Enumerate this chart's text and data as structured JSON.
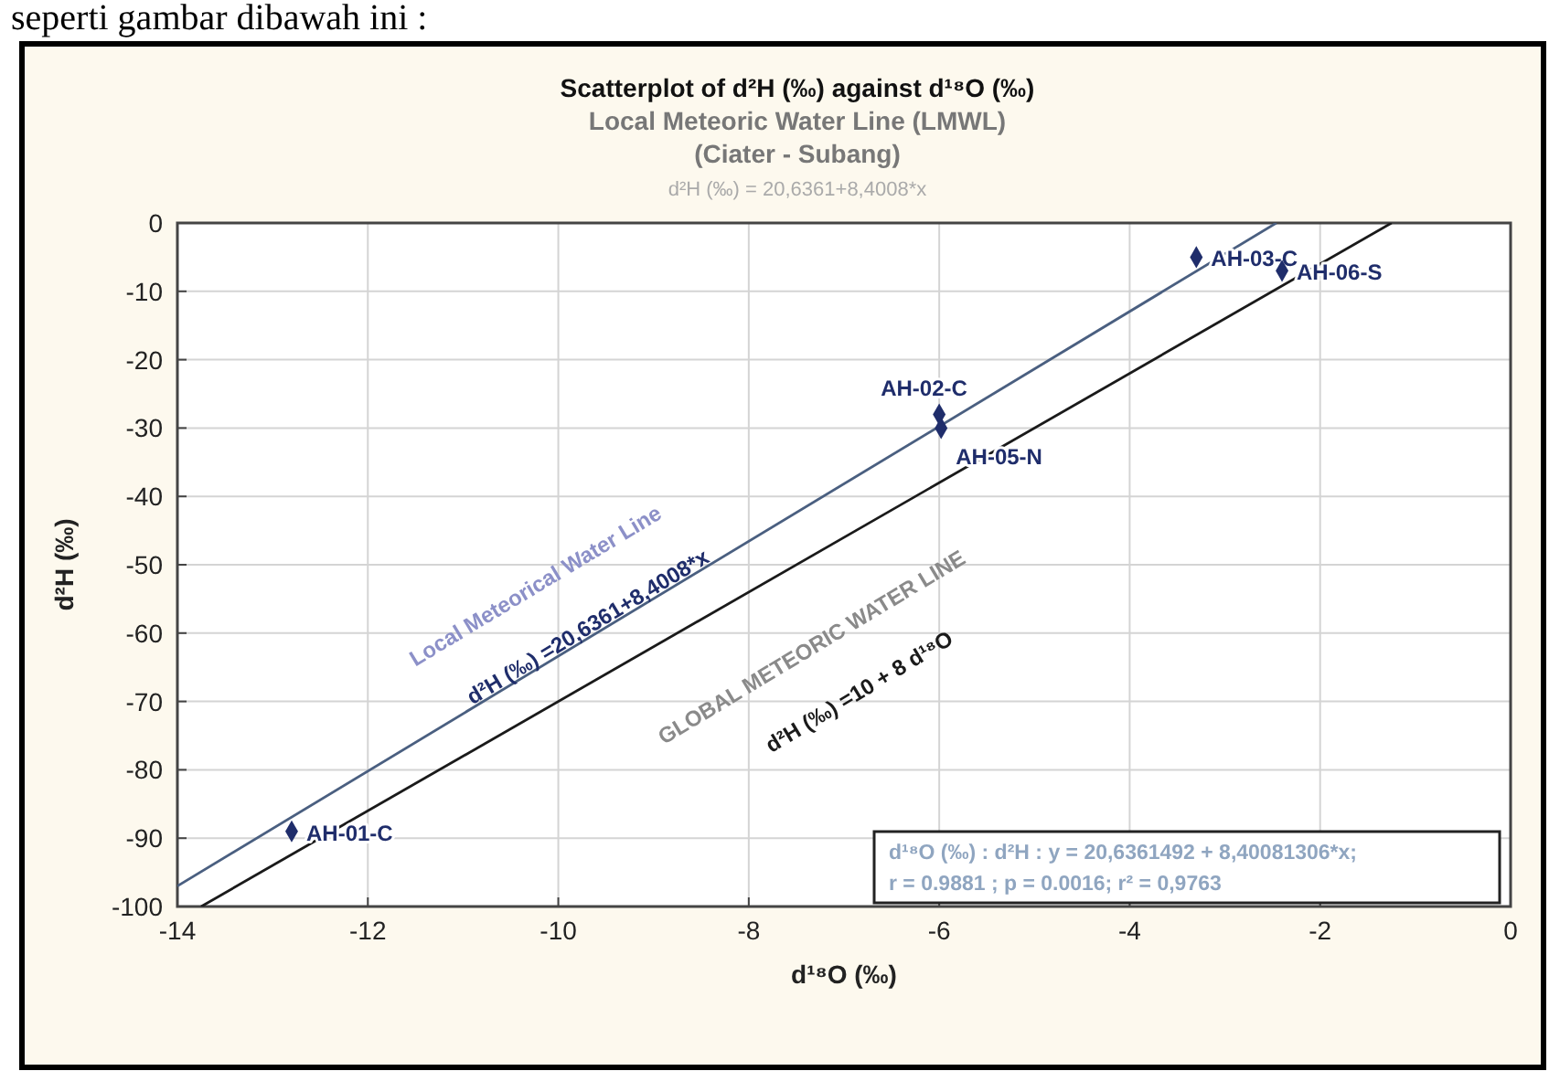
{
  "chart_data": {
    "type": "scatter",
    "title": "Scatterplot of d²H (‰) against d¹⁸O (‰)",
    "subtitle": "Local Meteoric Water Line (LMWL)",
    "xlabel": "d¹⁸O (‰)",
    "ylabel": "d²H (‰)",
    "xlim": [
      -14,
      0
    ],
    "xticks": [
      -14,
      -12,
      -10,
      -8,
      -6,
      -4,
      -2,
      0
    ],
    "ylim": [
      -100,
      0
    ],
    "yticks": [
      -100,
      -90,
      -80,
      -70,
      -60,
      -50,
      -40,
      -30,
      -20,
      -10,
      0
    ],
    "grid": true,
    "marker": "diamond",
    "series": [
      {
        "type": "line",
        "marker": "none",
        "color": "#4a5f80",
        "x": [
          -14,
          -2.46
        ],
        "values": [
          -97,
          0
        ]
      },
      {
        "type": "line",
        "marker": "none",
        "color": "#1a1a1a",
        "x": [
          -13.75,
          -1.25
        ],
        "values": [
          -100,
          0
        ]
      },
      {
        "name": "AH-01-C",
        "color": "#1f2d6b",
        "x": [
          -12.8
        ],
        "values": [
          -89
        ]
      },
      {
        "name": "AH-02-C",
        "color": "#1f2d6b",
        "x": [
          -6
        ],
        "values": [
          -28
        ]
      },
      {
        "name": "AH-05-N",
        "color": "#1f2d6b",
        "x": [
          -5.98
        ],
        "values": [
          -30
        ]
      },
      {
        "name": "AH-03-C",
        "color": "#1f2d6b",
        "x": [
          -3.3
        ],
        "values": [
          -5
        ]
      },
      {
        "name": "AH-06-S",
        "color": "#1f2d6b",
        "x": [
          -2.4
        ],
        "values": [
          -7
        ]
      }
    ],
    "annotations": [
      "seperti gambar dibawah ini :",
      "(Ciater - Subang)",
      "d²H (‰)  = 20,6361+8,4008*x",
      "Local Meteorical Water Line",
      "d²H (‰) =20,6361+8,4008*x",
      "GLOBAL METEORIC WATER LINE",
      "d²H (‰) =10 + 8 d¹⁸O",
      "d¹⁸O (‰) : d²H : y = 20,6361492 + 8,40081306*x;",
      "r = 0.9881 ; p = 0.0016; r² = 0,9763"
    ]
  }
}
